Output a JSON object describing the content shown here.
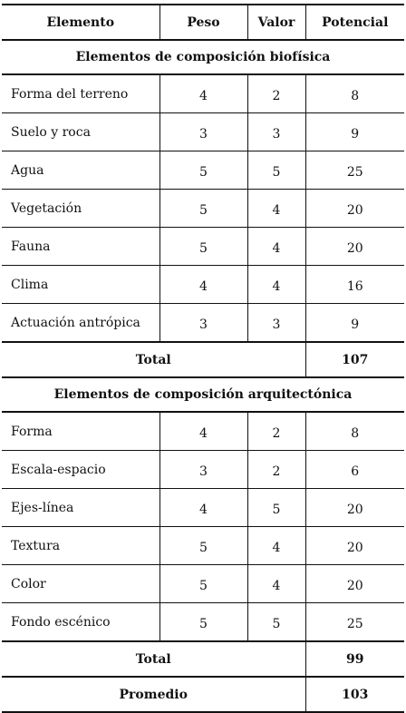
{
  "headers": {
    "elemento": "Elemento",
    "peso": "Peso",
    "valor": "Valor",
    "potencial": "Potencial"
  },
  "sections": [
    {
      "title": "Elementos de composición biofísica",
      "rows": [
        {
          "elemento": "Forma del terreno",
          "peso": "4",
          "valor": "2",
          "potencial": "8"
        },
        {
          "elemento": "Suelo y roca",
          "peso": "3",
          "valor": "3",
          "potencial": "9"
        },
        {
          "elemento": "Agua",
          "peso": "5",
          "valor": "5",
          "potencial": "25"
        },
        {
          "elemento": "Vegetación",
          "peso": "5",
          "valor": "4",
          "potencial": "20"
        },
        {
          "elemento": "Fauna",
          "peso": "5",
          "valor": "4",
          "potencial": "20"
        },
        {
          "elemento": "Clima",
          "peso": "4",
          "valor": "4",
          "potencial": "16"
        },
        {
          "elemento": "Actuación antrópica",
          "peso": "3",
          "valor": "3",
          "potencial": "9"
        }
      ],
      "total_label": "Total",
      "total_value": "107"
    },
    {
      "title": "Elementos de composición arquitectónica",
      "rows": [
        {
          "elemento": "Forma",
          "peso": "4",
          "valor": "2",
          "potencial": "8"
        },
        {
          "elemento": "Escala-espacio",
          "peso": "3",
          "valor": "2",
          "potencial": "6"
        },
        {
          "elemento": "Ejes-línea",
          "peso": "4",
          "valor": "5",
          "potencial": "20"
        },
        {
          "elemento": "Textura",
          "peso": "5",
          "valor": "4",
          "potencial": "20"
        },
        {
          "elemento": "Color",
          "peso": "5",
          "valor": "4",
          "potencial": "20"
        },
        {
          "elemento": "Fondo escénico",
          "peso": "5",
          "valor": "5",
          "potencial": "25"
        }
      ],
      "total_label": "Total",
      "total_value": "99"
    }
  ],
  "promedio": {
    "label": "Promedio",
    "value": "103"
  }
}
